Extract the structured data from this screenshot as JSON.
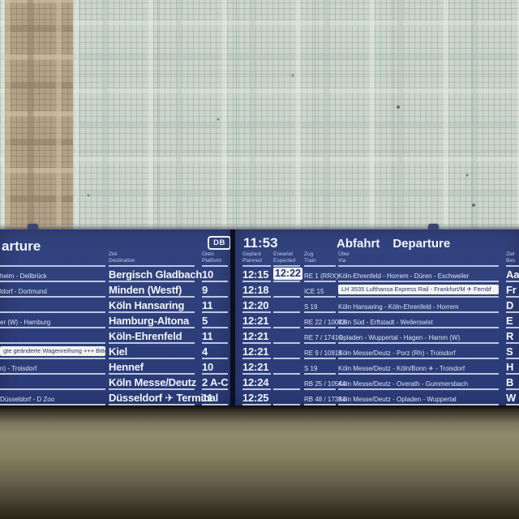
{
  "colors": {
    "board_bg": "#2e3e7c",
    "highlight_bg": "#f3f4f0",
    "highlight_text": "#27356e",
    "wall_tile": "#ccd6cd",
    "wall_band": "#b2a189"
  },
  "left_board": {
    "header_partial": "arture",
    "db_logo": "DB",
    "columns": {
      "ziel_de": "Ziel",
      "ziel_en": "Destination",
      "gleis_de": "Gleis",
      "gleis_en": "Platform"
    },
    "rows": [
      {
        "via": "heim - Dellbrück",
        "destination": "Bergisch Gladbach",
        "platform": "10"
      },
      {
        "via": "ldorf - Dortmund",
        "destination": "Minden (Westf)",
        "platform": "9"
      },
      {
        "via": "",
        "destination": "Köln Hansaring",
        "platform": "11"
      },
      {
        "via": "er (W) - Hamburg",
        "destination": "Hamburg-Altona",
        "platform": "5"
      },
      {
        "via": "",
        "destination": "Köln-Ehrenfeld",
        "platform": "11"
      },
      {
        "via": "gte geänderte Wagenreihung +++ Bitte bea",
        "destination": "Kiel",
        "platform": "4"
      },
      {
        "via": "n) - Troisdorf",
        "destination": "Hennef",
        "platform": "10"
      },
      {
        "via": "",
        "destination": "Köln Messe/Deutz",
        "platform": "2 A-C"
      },
      {
        "via": "Düsseldorf - D Zoo",
        "destination": "Düsseldorf ✈ Terminal",
        "platform": "11"
      }
    ]
  },
  "right_board": {
    "clock": "11:53",
    "title_de": "Abfahrt",
    "title_en": "Departure",
    "columns": {
      "geplant_de": "Geplant",
      "geplant_en": "Planned",
      "erwartet_de": "Erwartet",
      "erwartet_en": "Expected",
      "zug_de": "Zug",
      "zug_en": "Train",
      "ueber_de": "Über",
      "ueber_en": "Via",
      "ziel_de": "Ziel",
      "ziel_en": "Bes"
    },
    "rows": [
      {
        "planned": "12:15",
        "expected": "12:22",
        "train": "RE 1 (RRX)",
        "via": "Köln-Ehrenfeld - Horrem - Düren - Eschweiler",
        "dest_partial": "Aa"
      },
      {
        "planned": "12:18",
        "expected": "",
        "train": "ICE 15",
        "via": "LH 3535 Lufthansa Express Rail - Frankfurt/M ✈ Fernbf",
        "dest_partial": "Fr"
      },
      {
        "planned": "12:20",
        "expected": "",
        "train": "S 19",
        "via": "Köln Hansaring - Köln-Ehrenfeld - Horrem",
        "dest_partial": "D"
      },
      {
        "planned": "12:21",
        "expected": "",
        "train": "RE 22 / 10023",
        "via": "Köln Süd - Erftstadt - Weilerswist",
        "dest_partial": "E"
      },
      {
        "planned": "12:21",
        "expected": "",
        "train": "RE 7 / 17416",
        "via": "Opladen - Wuppertal - Hagen - Hamm (W)",
        "dest_partial": "R"
      },
      {
        "planned": "12:21",
        "expected": "",
        "train": "RE 9 / 10913",
        "via": "Köln Messe/Deutz - Porz (Rh) - Troisdorf",
        "dest_partial": "S"
      },
      {
        "planned": "12:21",
        "expected": "",
        "train": "S 19",
        "via": "Köln Messe/Deutz - Köln/Bonn ✈ - Troisdorf",
        "dest_partial": "H"
      },
      {
        "planned": "12:24",
        "expected": "",
        "train": "RB 25 / 10544",
        "via": "Köln Messe/Deutz - Overath - Gummersbach",
        "dest_partial": "B"
      },
      {
        "planned": "12:25",
        "expected": "",
        "train": "RB 48 / 17334",
        "via": "Köln Messe/Deutz - Opladen - Wuppertal",
        "dest_partial": "W"
      }
    ]
  }
}
